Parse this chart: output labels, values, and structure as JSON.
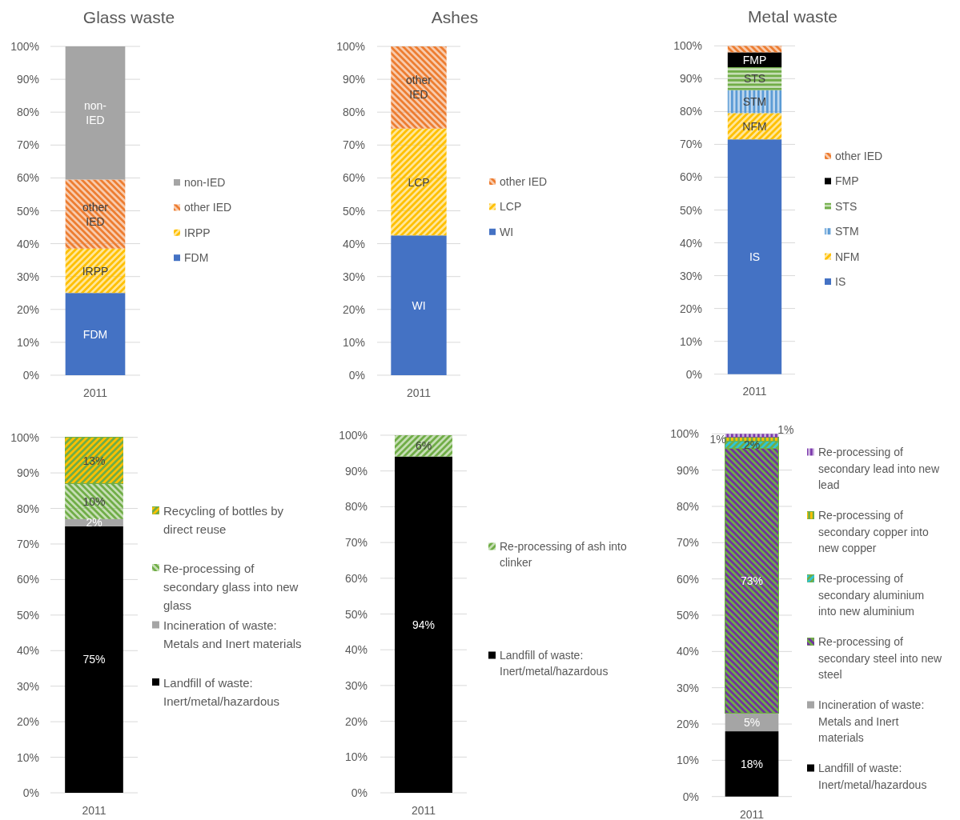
{
  "chart_data": [
    {
      "type": "bar",
      "title": "Glass waste",
      "categories": [
        "2011"
      ],
      "stacked": true,
      "ylim": [
        0,
        100
      ],
      "yticks": [
        {
          "value": 0,
          "label": "0%"
        },
        {
          "value": 10,
          "label": "10%"
        },
        {
          "value": 20,
          "label": "20%"
        },
        {
          "value": 30,
          "label": "30%"
        },
        {
          "value": 40,
          "label": "40%"
        },
        {
          "value": 50,
          "label": "50%"
        },
        {
          "value": 60,
          "label": "60%"
        },
        {
          "value": 70,
          "label": "70%"
        },
        {
          "value": 80,
          "label": "80%"
        },
        {
          "value": 90,
          "label": "90%"
        },
        {
          "value": 100,
          "label": "100%"
        }
      ],
      "grid": "y",
      "legend": "right",
      "series": [
        {
          "name": "FDM",
          "color": "#4472c4",
          "values": [
            25
          ],
          "value_labels": [
            "FDM"
          ]
        },
        {
          "name": "IRPP",
          "color": "#ffc000",
          "values": [
            13.5
          ],
          "value_labels": [
            "IRPP"
          ]
        },
        {
          "name": "other IED",
          "color": "#ed7d31",
          "values": [
            21
          ],
          "value_labels": [
            "other IED"
          ]
        },
        {
          "name": "non-IED",
          "color": "#a5a5a5",
          "values": [
            40.5
          ],
          "value_labels": [
            "non-IED"
          ]
        }
      ]
    },
    {
      "type": "bar",
      "title": "Ashes",
      "categories": [
        "2011"
      ],
      "stacked": true,
      "ylim": [
        0,
        100
      ],
      "yticks": [
        {
          "value": 0,
          "label": "0%"
        },
        {
          "value": 10,
          "label": "10%"
        },
        {
          "value": 20,
          "label": "20%"
        },
        {
          "value": 30,
          "label": "30%"
        },
        {
          "value": 40,
          "label": "40%"
        },
        {
          "value": 50,
          "label": "50%"
        },
        {
          "value": 60,
          "label": "60%"
        },
        {
          "value": 70,
          "label": "70%"
        },
        {
          "value": 80,
          "label": "80%"
        },
        {
          "value": 90,
          "label": "90%"
        },
        {
          "value": 100,
          "label": "100%"
        }
      ],
      "grid": "y",
      "legend": "right",
      "series": [
        {
          "name": "WI",
          "color": "#4472c4",
          "values": [
            42.5
          ],
          "value_labels": [
            "WI"
          ]
        },
        {
          "name": "LCP",
          "color": "#ffc000",
          "values": [
            32.5
          ],
          "value_labels": [
            "LCP"
          ]
        },
        {
          "name": "other IED",
          "color": "#ed7d31",
          "values": [
            25
          ],
          "value_labels": [
            "other IED"
          ]
        }
      ]
    },
    {
      "type": "bar",
      "title": "Metal waste",
      "categories": [
        "2011"
      ],
      "stacked": true,
      "ylim": [
        0,
        100
      ],
      "yticks": [
        {
          "value": 0,
          "label": "0%"
        },
        {
          "value": 10,
          "label": "10%"
        },
        {
          "value": 20,
          "label": "20%"
        },
        {
          "value": 30,
          "label": "30%"
        },
        {
          "value": 40,
          "label": "40%"
        },
        {
          "value": 50,
          "label": "50%"
        },
        {
          "value": 60,
          "label": "60%"
        },
        {
          "value": 70,
          "label": "70%"
        },
        {
          "value": 80,
          "label": "80%"
        },
        {
          "value": 90,
          "label": "90%"
        },
        {
          "value": 100,
          "label": "100%"
        }
      ],
      "grid": "y",
      "legend": "right",
      "series": [
        {
          "name": "IS",
          "color": "#4472c4",
          "values": [
            71.5
          ],
          "value_labels": [
            "IS"
          ]
        },
        {
          "name": "NFM",
          "color": "#ffc000",
          "values": [
            8
          ],
          "value_labels": [
            "NFM"
          ]
        },
        {
          "name": "STM",
          "color": "#5b9bd5",
          "values": [
            7
          ],
          "value_labels": [
            "STM"
          ]
        },
        {
          "name": "STS",
          "color": "#70ad47",
          "values": [
            7
          ],
          "value_labels": [
            "STS"
          ]
        },
        {
          "name": "FMP",
          "color": "#000000",
          "values": [
            4.5
          ],
          "value_labels": [
            "FMP"
          ]
        },
        {
          "name": "other IED",
          "color": "#ed7d31",
          "values": [
            2
          ]
        }
      ]
    },
    {
      "type": "bar",
      "categories": [
        "2011"
      ],
      "stacked": true,
      "ylim": [
        0,
        100
      ],
      "yticks": [
        {
          "value": 0,
          "label": "0%"
        },
        {
          "value": 10,
          "label": "10%"
        },
        {
          "value": 20,
          "label": "20%"
        },
        {
          "value": 30,
          "label": "30%"
        },
        {
          "value": 40,
          "label": "40%"
        },
        {
          "value": 50,
          "label": "50%"
        },
        {
          "value": 60,
          "label": "60%"
        },
        {
          "value": 70,
          "label": "70%"
        },
        {
          "value": 80,
          "label": "80%"
        },
        {
          "value": 90,
          "label": "90%"
        },
        {
          "value": 100,
          "label": "100%"
        }
      ],
      "grid": "y",
      "legend": "right",
      "series": [
        {
          "name": "Landfill of waste: Inert/metal/hazardous",
          "color": "#000000",
          "values": [
            75
          ],
          "value_labels": [
            "75%"
          ]
        },
        {
          "name": "Incineration of waste: Metals and Inert materials",
          "color": "#a5a5a5",
          "values": [
            2
          ],
          "value_labels": [
            "2%"
          ]
        },
        {
          "name": "Re-processing of secondary glass into new glass",
          "color": "#70ad47",
          "values": [
            10
          ],
          "value_labels": [
            "10%"
          ]
        },
        {
          "name": "Recycling of bottles by direct reuse",
          "color": "#ffc000",
          "values": [
            13
          ],
          "value_labels": [
            "13%"
          ]
        }
      ]
    },
    {
      "type": "bar",
      "categories": [
        "2011"
      ],
      "stacked": true,
      "ylim": [
        0,
        100
      ],
      "yticks": [
        {
          "value": 0,
          "label": "0%"
        },
        {
          "value": 10,
          "label": "10%"
        },
        {
          "value": 20,
          "label": "20%"
        },
        {
          "value": 30,
          "label": "30%"
        },
        {
          "value": 40,
          "label": "40%"
        },
        {
          "value": 50,
          "label": "50%"
        },
        {
          "value": 60,
          "label": "60%"
        },
        {
          "value": 70,
          "label": "70%"
        },
        {
          "value": 80,
          "label": "80%"
        },
        {
          "value": 90,
          "label": "90%"
        },
        {
          "value": 100,
          "label": "100%"
        }
      ],
      "grid": "y",
      "legend": "right",
      "series": [
        {
          "name": "Landfill of waste: Inert/metal/hazardous",
          "color": "#000000",
          "values": [
            94
          ],
          "value_labels": [
            "94%"
          ]
        },
        {
          "name": "Re-processing of ash into clinker",
          "color": "#70ad47",
          "values": [
            6
          ],
          "value_labels": [
            "6%"
          ]
        }
      ]
    },
    {
      "type": "bar",
      "categories": [
        "2011"
      ],
      "stacked": true,
      "ylim": [
        0,
        100
      ],
      "yticks": [
        {
          "value": 0,
          "label": "0%"
        },
        {
          "value": 10,
          "label": "10%"
        },
        {
          "value": 20,
          "label": "20%"
        },
        {
          "value": 30,
          "label": "30%"
        },
        {
          "value": 40,
          "label": "40%"
        },
        {
          "value": 50,
          "label": "50%"
        },
        {
          "value": 60,
          "label": "60%"
        },
        {
          "value": 70,
          "label": "70%"
        },
        {
          "value": 80,
          "label": "80%"
        },
        {
          "value": 90,
          "label": "90%"
        },
        {
          "value": 100,
          "label": "100%"
        }
      ],
      "grid": "y",
      "legend": "right",
      "series": [
        {
          "name": "Landfill of waste: Inert/metal/hazardous",
          "color": "#000000",
          "values": [
            18
          ],
          "value_labels": [
            "18%"
          ]
        },
        {
          "name": "Incineration of waste: Metals and Inert materials",
          "color": "#a5a5a5",
          "values": [
            5
          ],
          "value_labels": [
            "5%"
          ]
        },
        {
          "name": "Re-processing of secondary steel into new steel",
          "color": "#7030a0",
          "values": [
            73
          ],
          "value_labels": [
            "73%"
          ]
        },
        {
          "name": "Re-processing of secondary aluminium into new aluminium",
          "color": "#2ec5d8",
          "values": [
            2
          ],
          "value_labels": [
            "2%"
          ]
        },
        {
          "name": "Re-processing of secondary copper into new copper",
          "color": "#ffc000",
          "values": [
            1
          ],
          "value_labels": [
            "1%"
          ]
        },
        {
          "name": "Re-processing of secondary lead into new lead",
          "color": "#7c3aad",
          "values": [
            1
          ],
          "value_labels": [
            "1%"
          ]
        }
      ]
    }
  ]
}
